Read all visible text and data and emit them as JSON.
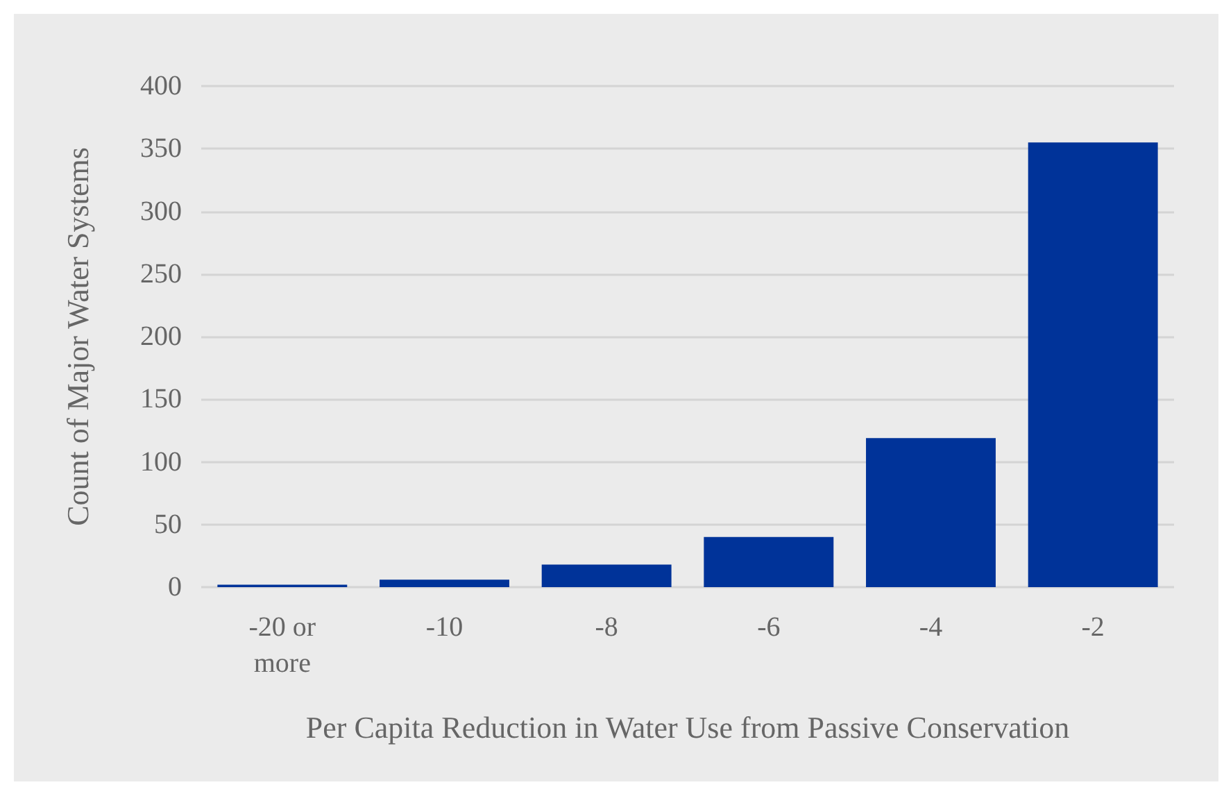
{
  "chart_data": {
    "type": "bar",
    "xlabel": "Per Capita Reduction in Water Use from Passive Conservation",
    "ylabel": "Count of Major Water Systems",
    "categories": [
      "-20 or\nmore",
      "-10",
      "-8",
      "-6",
      "-4",
      "-2"
    ],
    "values": [
      2,
      6,
      18,
      40,
      119,
      355
    ],
    "color": "#003399",
    "ylim": [
      0,
      400
    ],
    "yticks": [
      0,
      50,
      100,
      150,
      200,
      250,
      300,
      350,
      400
    ],
    "grid": "y"
  }
}
